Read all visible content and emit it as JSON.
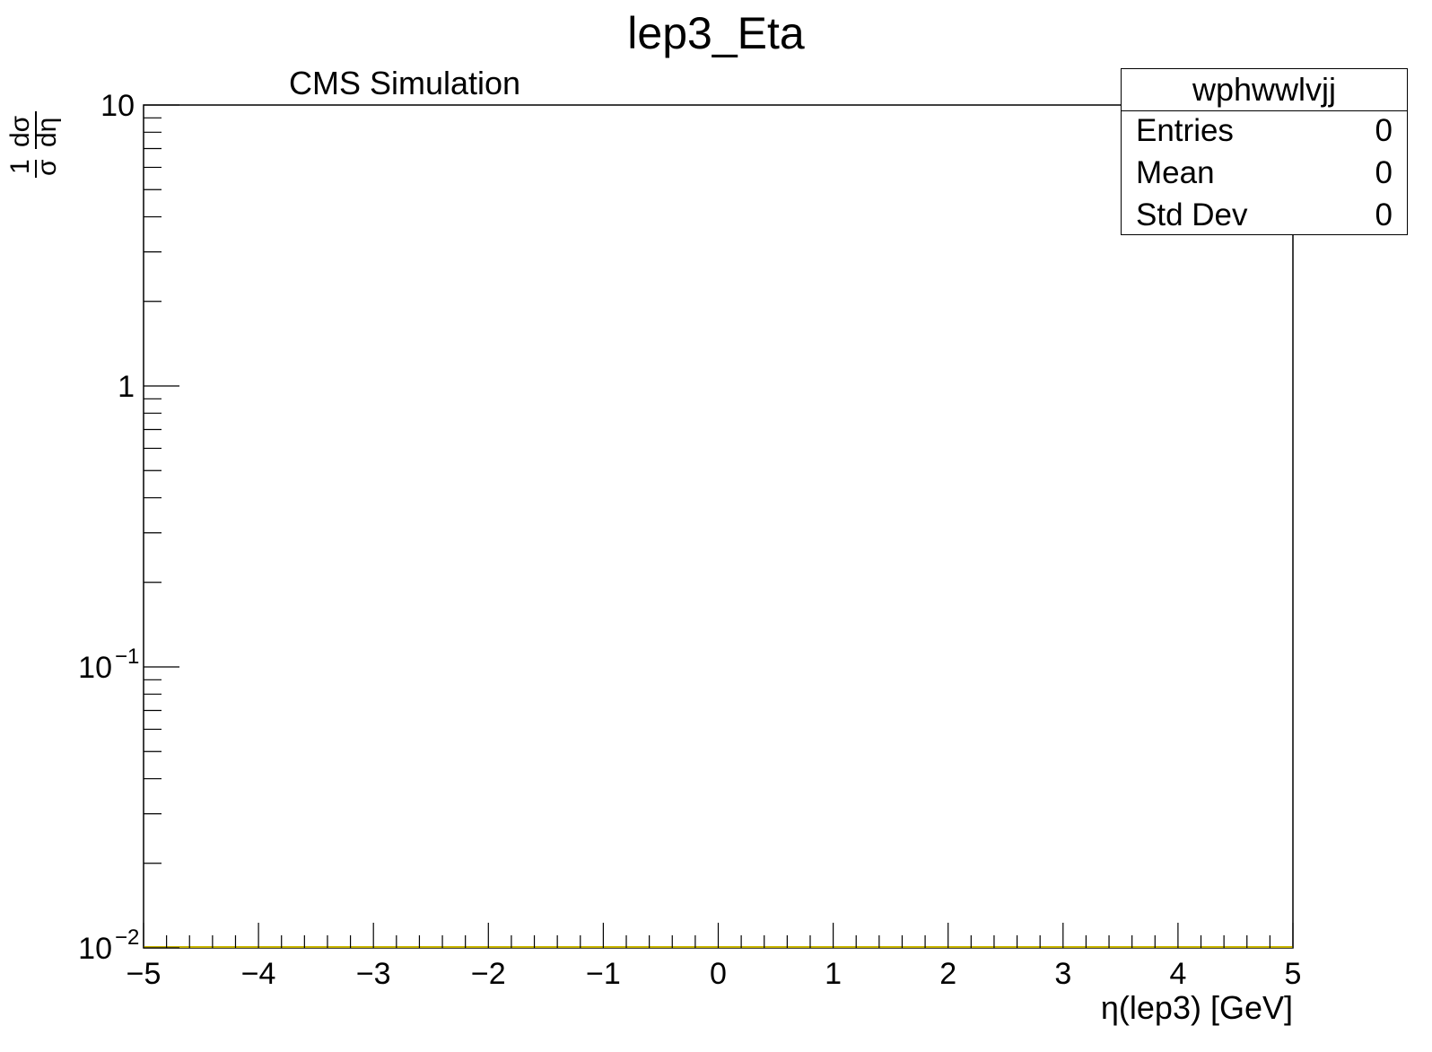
{
  "chart_data": {
    "type": "bar",
    "title": "lep3_Eta",
    "annotation": "CMS Simulation",
    "xlabel": "η(lep3) [GeV]",
    "ylabel": {
      "numerator": "1",
      "denominator": "σ",
      "fraction_num": "dσ",
      "fraction_den": "dη"
    },
    "xlim": [
      -5,
      5
    ],
    "ylim": [
      0.01,
      10
    ],
    "y_scale": "log",
    "x_ticks": [
      -5,
      -4,
      -3,
      -2,
      -1,
      0,
      1,
      2,
      3,
      4,
      5
    ],
    "x_tick_labels": [
      "−5",
      "−4",
      "−3",
      "−2",
      "−1",
      "0",
      "1",
      "2",
      "3",
      "4",
      "5"
    ],
    "y_ticks": [
      {
        "value": 10,
        "base": "10",
        "exp": ""
      },
      {
        "value": 1,
        "base": "1",
        "exp": ""
      },
      {
        "value": 0.1,
        "base": "10",
        "exp": "−1"
      },
      {
        "value": 0.01,
        "base": "10",
        "exp": "−2"
      }
    ],
    "series": [
      {
        "name": "wphwwlvjj",
        "values": [],
        "color": "#c8b400"
      }
    ],
    "grid": false,
    "legend": "top-right"
  },
  "stats_box": {
    "title": "wphwwlvjj",
    "rows": [
      {
        "label": "Entries",
        "value": "0"
      },
      {
        "label": "Mean",
        "value": "0"
      },
      {
        "label": "Std Dev",
        "value": "0"
      }
    ]
  }
}
